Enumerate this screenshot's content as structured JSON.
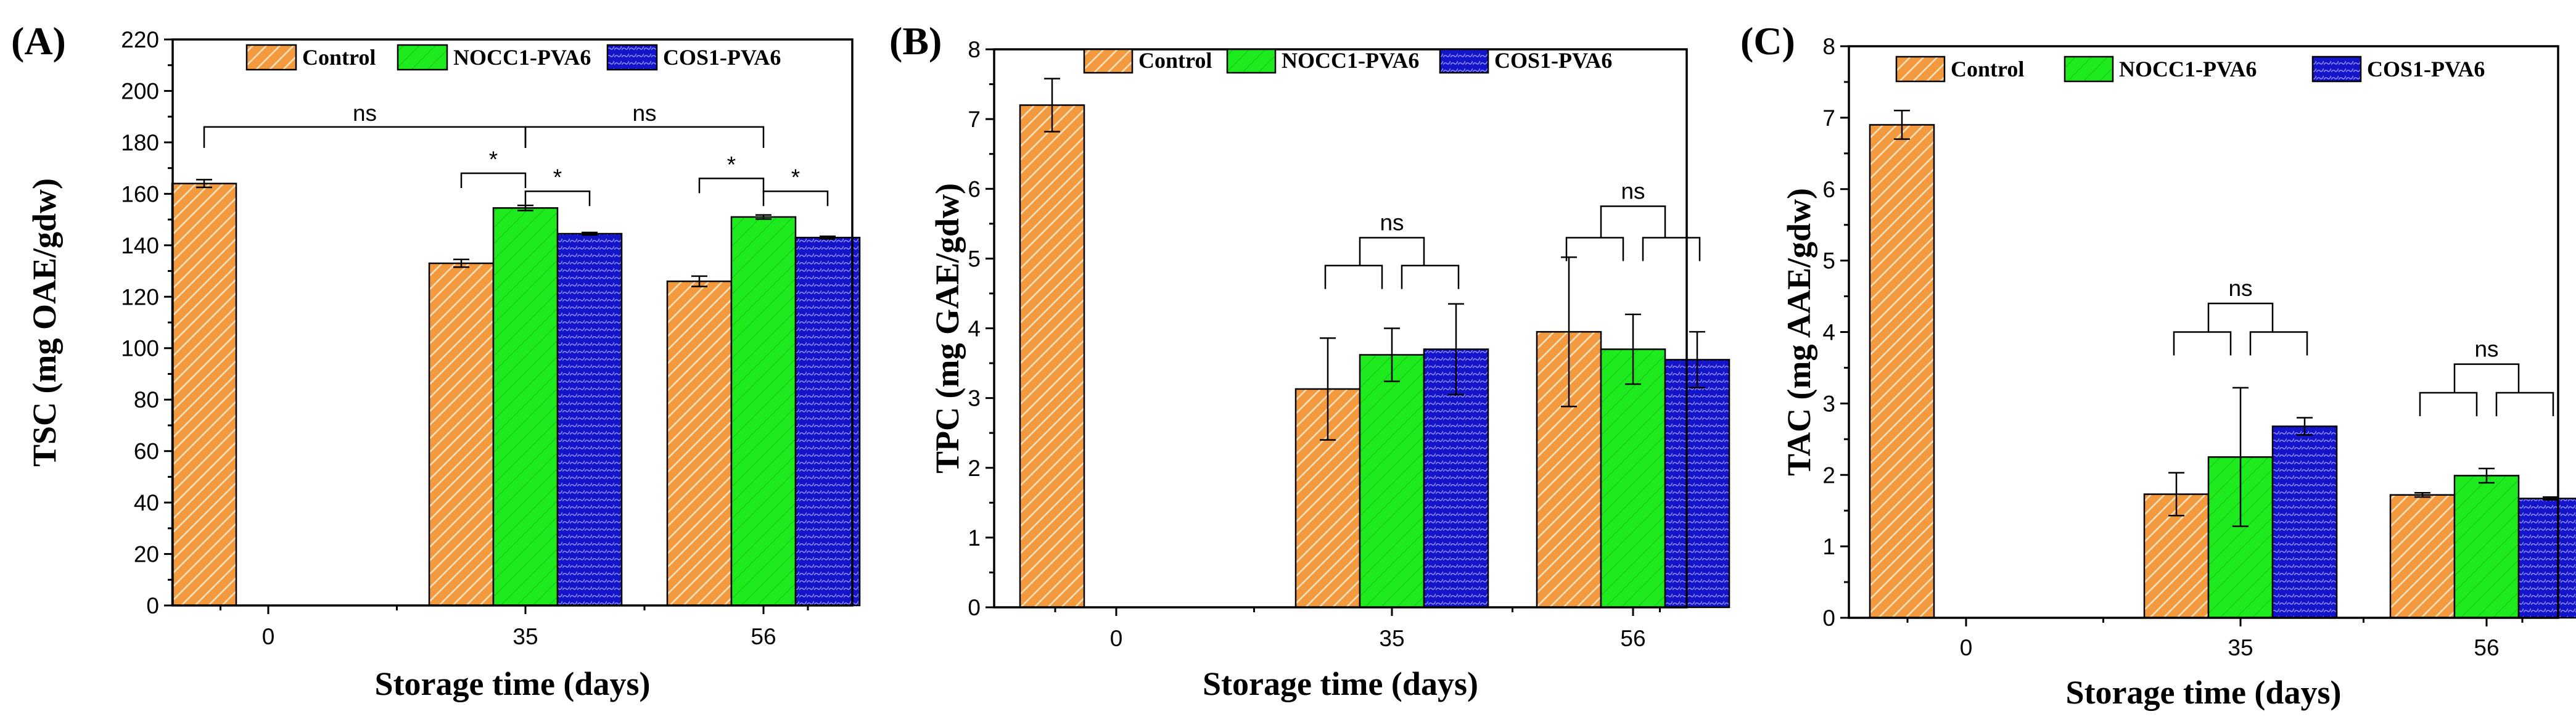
{
  "colors": {
    "control": "#F39A3E",
    "control_hatch": "#FFE3C2",
    "nocc1": "#1EEB1E",
    "nocc1_hatch": "#19C619",
    "cos1": "#1414C8",
    "cos1_hatch": "#8C8CFF",
    "outline": "#000000"
  },
  "legend": [
    "Control",
    "NOCC1-PVA6",
    "COS1-PVA6"
  ],
  "chart_data": [
    {
      "type": "bar",
      "panel": "(A)",
      "xlabel": "Storage time (days)",
      "ylabel": "TSC (mg OAE/gdw)",
      "categories": [
        "0",
        "35",
        "56"
      ],
      "ylim": [
        0,
        220
      ],
      "yticks": [
        0,
        20,
        40,
        60,
        80,
        100,
        120,
        140,
        160,
        180,
        200,
        220
      ],
      "series": [
        {
          "name": "Control",
          "values": [
            164,
            133,
            126
          ],
          "errors": [
            1.5,
            1.5,
            2
          ]
        },
        {
          "name": "NOCC1-PVA6",
          "values": [
            null,
            154.5,
            151
          ],
          "errors": [
            null,
            1,
            0.8
          ]
        },
        {
          "name": "COS1-PVA6",
          "values": [
            null,
            144.5,
            143
          ],
          "errors": [
            null,
            0.5,
            0.5
          ]
        }
      ],
      "annotations": [
        {
          "type": "span",
          "from": [
            0,
            0
          ],
          "to": [
            1,
            1
          ],
          "level": 186,
          "label": "ns"
        },
        {
          "type": "span",
          "from": [
            1,
            1
          ],
          "to": [
            2,
            1
          ],
          "level": 186,
          "label": "ns"
        },
        {
          "type": "pair",
          "from": [
            1,
            0
          ],
          "to": [
            1,
            1
          ],
          "level": 168,
          "label": "*"
        },
        {
          "type": "pair",
          "from": [
            1,
            1
          ],
          "to": [
            1,
            2
          ],
          "level": 161,
          "label": "*"
        },
        {
          "type": "pair",
          "from": [
            2,
            0
          ],
          "to": [
            2,
            1
          ],
          "level": 166,
          "label": "*"
        },
        {
          "type": "pair",
          "from": [
            2,
            1
          ],
          "to": [
            2,
            2
          ],
          "level": 161,
          "label": "*"
        }
      ]
    },
    {
      "type": "bar",
      "panel": "(B)",
      "xlabel": "Storage time (days)",
      "ylabel": "TPC (mg GAE/gdw)",
      "categories": [
        "0",
        "35",
        "56"
      ],
      "ylim": [
        0,
        8
      ],
      "yticks": [
        0,
        1,
        2,
        3,
        4,
        5,
        6,
        7,
        8
      ],
      "series": [
        {
          "name": "Control",
          "values": [
            7.2,
            3.13,
            3.95
          ],
          "errors": [
            0.38,
            0.73,
            1.07
          ]
        },
        {
          "name": "NOCC1-PVA6",
          "values": [
            null,
            3.62,
            3.7
          ],
          "errors": [
            null,
            0.38,
            0.5
          ]
        },
        {
          "name": "COS1-PVA6",
          "values": [
            null,
            3.7,
            3.55
          ],
          "errors": [
            null,
            0.65,
            0.4
          ]
        }
      ],
      "annotations": [
        {
          "type": "group",
          "category": 1,
          "lower": 4.9,
          "upper": 5.3,
          "label": "ns"
        },
        {
          "type": "group",
          "category": 2,
          "lower": 5.3,
          "upper": 5.75,
          "label": "ns"
        }
      ]
    },
    {
      "type": "bar",
      "panel": "(C)",
      "xlabel": "Storage time (days)",
      "ylabel": "TAC (mg AAE/gdw)",
      "categories": [
        "0",
        "35",
        "56"
      ],
      "ylim": [
        0,
        8
      ],
      "yticks": [
        0,
        1,
        2,
        3,
        4,
        5,
        6,
        7,
        8
      ],
      "series": [
        {
          "name": "Control",
          "values": [
            6.9,
            1.73,
            1.72
          ],
          "errors": [
            0.2,
            0.3,
            0.03
          ]
        },
        {
          "name": "NOCC1-PVA6",
          "values": [
            null,
            2.25,
            1.99
          ],
          "errors": [
            null,
            0.97,
            0.1
          ]
        },
        {
          "name": "COS1-PVA6",
          "values": [
            null,
            2.68,
            1.67
          ],
          "errors": [
            null,
            0.12,
            0.02
          ]
        }
      ],
      "annotations": [
        {
          "type": "group",
          "category": 1,
          "lower": 4.0,
          "upper": 4.4,
          "label": "ns"
        },
        {
          "type": "group",
          "category": 2,
          "lower": 3.15,
          "upper": 3.55,
          "label": "ns"
        }
      ]
    }
  ]
}
